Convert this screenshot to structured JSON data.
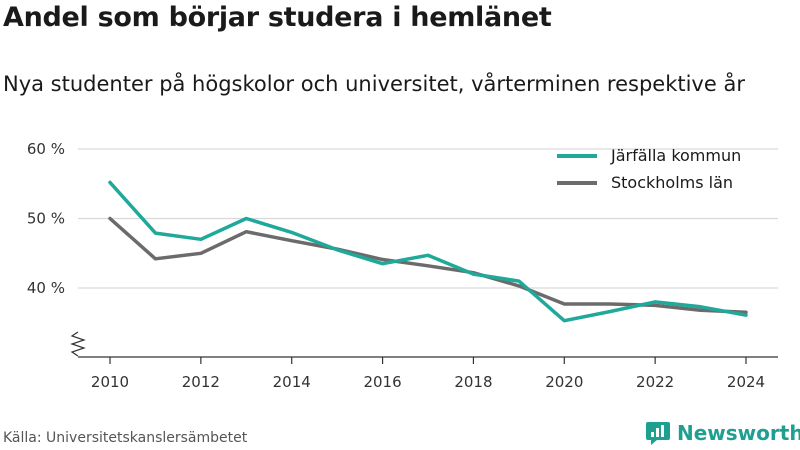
{
  "header": {
    "title": "Andel som börjar studera i hemlänet",
    "subtitle": "Nya studenter på högskolor och universitet, vårterminen respektive år"
  },
  "footer": {
    "source": "Källa: Universitetskanslersämbetet",
    "brand": "Newsworthy",
    "brand_color": "#1ea091"
  },
  "chart_data": {
    "type": "line",
    "title": "Andel som börjar studera i hemlänet",
    "subtitle": "Nya studenter på högskolor och universitet, vårterminen respektive år",
    "x": [
      2010,
      2011,
      2012,
      2013,
      2014,
      2015,
      2016,
      2017,
      2018,
      2019,
      2020,
      2021,
      2022,
      2023,
      2024
    ],
    "xticks": [
      "2010",
      "2012",
      "2014",
      "2016",
      "2018",
      "2020",
      "2022",
      "2024"
    ],
    "yticks": [
      {
        "value": 40,
        "label": "40 %"
      },
      {
        "value": 50,
        "label": "50 %"
      },
      {
        "value": 60,
        "label": "60 %"
      }
    ],
    "ylim": [
      30,
      60
    ],
    "y_axis_break": true,
    "grid": true,
    "legend_position": "top-right",
    "series": [
      {
        "name": "Järfälla kommun",
        "color": "#1ea99b",
        "values": [
          55.2,
          47.9,
          47.0,
          50.0,
          48.0,
          45.5,
          43.5,
          44.7,
          42.0,
          41.0,
          35.3,
          36.6,
          38.0,
          37.3,
          36.1
        ]
      },
      {
        "name": "Stockholms län",
        "color": "#6b6b6b",
        "values": [
          50.0,
          44.2,
          45.0,
          48.1,
          46.8,
          45.6,
          44.1,
          43.2,
          42.2,
          40.3,
          37.7,
          37.7,
          37.5,
          36.8,
          36.5
        ]
      }
    ]
  }
}
